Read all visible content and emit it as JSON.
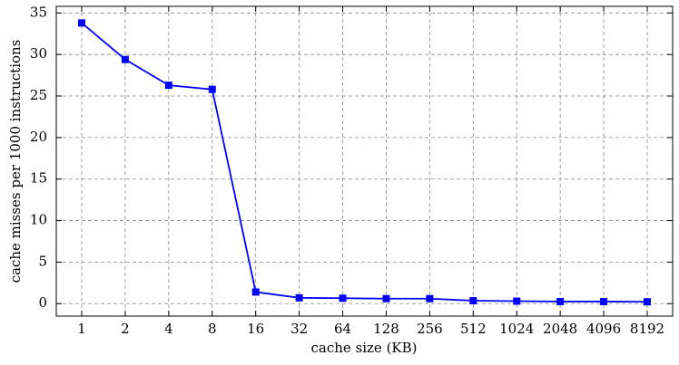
{
  "chart_data": {
    "type": "line",
    "x_label": "cache size (KB)",
    "y_label": "cache misses per 1000 instructions",
    "categories": [
      "1",
      "2",
      "4",
      "8",
      "16",
      "32",
      "64",
      "128",
      "256",
      "512",
      "1024",
      "2048",
      "4096",
      "8192"
    ],
    "series": [
      {
        "color": "#0000ff",
        "values": [
          33.8,
          29.4,
          26.3,
          25.8,
          1.4,
          0.7,
          0.65,
          0.6,
          0.6,
          0.35,
          0.3,
          0.25,
          0.25,
          0.22
        ]
      }
    ],
    "ylim": [
      -1.5,
      35.8
    ],
    "yticks": [
      0,
      5,
      10,
      15,
      20,
      25,
      30,
      35
    ],
    "grid": true
  }
}
